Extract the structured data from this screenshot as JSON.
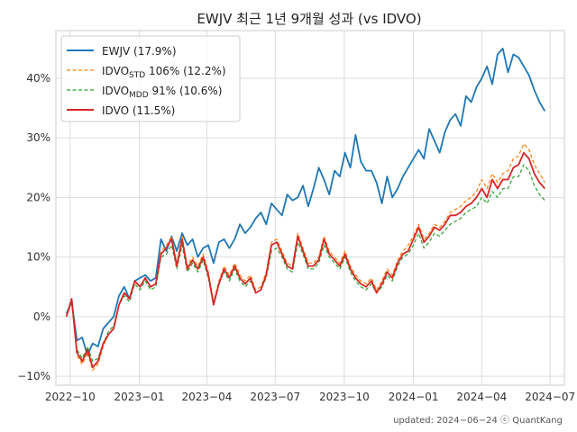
{
  "chart_data": {
    "type": "line",
    "title": "EWJV 최근 1년 9개월 성과 (vs IDVO)",
    "xlabel": "",
    "ylabel": "",
    "xlim": [
      "2022-09-12",
      "2024-07-20"
    ],
    "ylim": [
      -11.5,
      48
    ],
    "y_ticks": [
      -10,
      0,
      10,
      20,
      30,
      40
    ],
    "y_tick_labels": [
      "−10%",
      "0%",
      "10%",
      "20%",
      "30%",
      "40%"
    ],
    "x_ticks": [
      "2022-10-01",
      "2023-01-01",
      "2023-04-01",
      "2023-07-01",
      "2023-10-01",
      "2024-01-01",
      "2024-04-01",
      "2024-07-01"
    ],
    "x_tick_labels": [
      "2022−10",
      "2023−01",
      "2023−04",
      "2023−07",
      "2023−10",
      "2024−01",
      "2024−04",
      "2024−07"
    ],
    "grid": true,
    "legend_position": "top-left",
    "series": [
      {
        "name": "EWJV (17.9%)",
        "legend_main": "EWJV (17.9%)",
        "legend_sub": "",
        "legend_rest": "",
        "color": "#1f77b4",
        "style": "solid",
        "x": [
          "2022-09-26",
          "2022-10-03",
          "2022-10-10",
          "2022-10-17",
          "2022-10-24",
          "2022-10-31",
          "2022-11-07",
          "2022-11-14",
          "2022-11-21",
          "2022-11-28",
          "2022-12-05",
          "2022-12-12",
          "2022-12-19",
          "2022-12-26",
          "2023-01-02",
          "2023-01-09",
          "2023-01-16",
          "2023-01-23",
          "2023-01-30",
          "2023-02-06",
          "2023-02-13",
          "2023-02-20",
          "2023-02-27",
          "2023-03-06",
          "2023-03-13",
          "2023-03-20",
          "2023-03-27",
          "2023-04-03",
          "2023-04-10",
          "2023-04-17",
          "2023-04-24",
          "2023-05-01",
          "2023-05-08",
          "2023-05-15",
          "2023-05-22",
          "2023-05-29",
          "2023-06-05",
          "2023-06-12",
          "2023-06-19",
          "2023-06-26",
          "2023-07-03",
          "2023-07-10",
          "2023-07-17",
          "2023-07-24",
          "2023-07-31",
          "2023-08-07",
          "2023-08-14",
          "2023-08-21",
          "2023-08-28",
          "2023-09-04",
          "2023-09-11",
          "2023-09-18",
          "2023-09-25",
          "2023-10-02",
          "2023-10-09",
          "2023-10-16",
          "2023-10-23",
          "2023-10-30",
          "2023-11-06",
          "2023-11-13",
          "2023-11-20",
          "2023-11-27",
          "2023-12-04",
          "2023-12-11",
          "2023-12-18",
          "2023-12-25",
          "2024-01-01",
          "2024-01-08",
          "2024-01-15",
          "2024-01-22",
          "2024-01-29",
          "2024-02-05",
          "2024-02-12",
          "2024-02-19",
          "2024-02-26",
          "2024-03-04",
          "2024-03-11",
          "2024-03-18",
          "2024-03-25",
          "2024-04-01",
          "2024-04-08",
          "2024-04-15",
          "2024-04-22",
          "2024-04-29",
          "2024-05-06",
          "2024-05-13",
          "2024-05-20",
          "2024-05-27",
          "2024-06-03",
          "2024-06-10",
          "2024-06-17",
          "2024-06-24"
        ],
        "y": [
          0.5,
          2.5,
          -4.0,
          -3.5,
          -6.5,
          -4.5,
          -5.0,
          -2.0,
          -1.0,
          0.0,
          3.5,
          5.0,
          3.0,
          6.0,
          6.5,
          7.0,
          6.0,
          6.5,
          13.0,
          11.0,
          13.5,
          11.0,
          14.0,
          12.0,
          13.0,
          10.0,
          11.5,
          12.0,
          9.0,
          12.5,
          13.0,
          11.5,
          13.0,
          15.5,
          14.0,
          15.0,
          16.5,
          17.5,
          15.5,
          19.0,
          18.0,
          17.0,
          20.5,
          19.5,
          20.0,
          22.0,
          18.5,
          21.5,
          25.0,
          23.0,
          20.5,
          24.5,
          23.5,
          27.5,
          25.0,
          30.5,
          26.0,
          24.5,
          24.5,
          22.5,
          19.0,
          23.5,
          20.0,
          21.5,
          23.5,
          25.0,
          26.5,
          28.0,
          26.5,
          31.5,
          29.5,
          27.5,
          31.0,
          33.0,
          34.0,
          32.0,
          37.0,
          36.0,
          38.5,
          40.0,
          42.0,
          39.0,
          44.0,
          45.0,
          41.0,
          44.0,
          43.5,
          42.0,
          40.5,
          38.0,
          36.0,
          34.5
        ]
      },
      {
        "name": "IDVO_STD 106% (12.2%)",
        "legend_main": "IDVO",
        "legend_sub": "STD",
        "legend_rest": " 106% (12.2%)",
        "color": "#ff7f0e",
        "style": "dashed",
        "x": [
          "2022-09-26",
          "2022-10-03",
          "2022-10-10",
          "2022-10-17",
          "2022-10-24",
          "2022-10-31",
          "2022-11-07",
          "2022-11-14",
          "2022-11-21",
          "2022-11-28",
          "2022-12-05",
          "2022-12-12",
          "2022-12-19",
          "2022-12-26",
          "2023-01-02",
          "2023-01-09",
          "2023-01-16",
          "2023-01-23",
          "2023-01-30",
          "2023-02-06",
          "2023-02-13",
          "2023-02-20",
          "2023-02-27",
          "2023-03-06",
          "2023-03-13",
          "2023-03-20",
          "2023-03-27",
          "2023-04-03",
          "2023-04-10",
          "2023-04-17",
          "2023-04-24",
          "2023-05-01",
          "2023-05-08",
          "2023-05-15",
          "2023-05-22",
          "2023-05-29",
          "2023-06-05",
          "2023-06-12",
          "2023-06-19",
          "2023-06-26",
          "2023-07-03",
          "2023-07-10",
          "2023-07-17",
          "2023-07-24",
          "2023-07-31",
          "2023-08-07",
          "2023-08-14",
          "2023-08-21",
          "2023-08-28",
          "2023-09-04",
          "2023-09-11",
          "2023-09-18",
          "2023-09-25",
          "2023-10-02",
          "2023-10-09",
          "2023-10-16",
          "2023-10-23",
          "2023-10-30",
          "2023-11-06",
          "2023-11-13",
          "2023-11-20",
          "2023-11-27",
          "2023-12-04",
          "2023-12-11",
          "2023-12-18",
          "2023-12-25",
          "2024-01-01",
          "2024-01-08",
          "2024-01-15",
          "2024-01-22",
          "2024-01-29",
          "2024-02-05",
          "2024-02-12",
          "2024-02-19",
          "2024-02-26",
          "2024-03-04",
          "2024-03-11",
          "2024-03-18",
          "2024-03-25",
          "2024-04-01",
          "2024-04-08",
          "2024-04-15",
          "2024-04-22",
          "2024-04-29",
          "2024-05-06",
          "2024-05-13",
          "2024-05-20",
          "2024-05-27",
          "2024-06-03",
          "2024-06-10",
          "2024-06-17",
          "2024-06-24"
        ],
        "y": [
          0.0,
          3.0,
          -6.5,
          -8.0,
          -6.0,
          -9.0,
          -8.0,
          -5.0,
          -3.0,
          -2.0,
          2.0,
          4.0,
          3.0,
          6.0,
          5.0,
          6.5,
          5.0,
          5.5,
          11.0,
          12.0,
          13.5,
          9.0,
          13.5,
          8.5,
          10.0,
          8.5,
          10.5,
          7.5,
          2.5,
          6.0,
          8.5,
          7.0,
          9.0,
          7.0,
          6.0,
          7.0,
          4.5,
          5.0,
          7.5,
          12.5,
          13.0,
          11.0,
          9.0,
          8.5,
          14.0,
          11.5,
          9.0,
          9.0,
          10.0,
          13.5,
          11.0,
          10.0,
          9.0,
          11.0,
          8.5,
          7.0,
          6.0,
          5.5,
          6.5,
          4.5,
          6.0,
          8.0,
          7.0,
          9.5,
          11.0,
          12.0,
          13.5,
          15.5,
          13.0,
          14.0,
          15.5,
          15.0,
          16.0,
          17.5,
          18.0,
          18.5,
          19.5,
          20.0,
          21.0,
          23.0,
          21.5,
          24.0,
          22.5,
          24.0,
          24.5,
          26.5,
          27.0,
          29.0,
          28.0,
          25.5,
          24.0,
          22.5
        ]
      },
      {
        "name": "IDVO_MDD 91% (10.6%)",
        "legend_main": "IDVO",
        "legend_sub": "MDD",
        "legend_rest": " 91% (10.6%)",
        "color": "#2ca02c",
        "style": "dashed",
        "x": [
          "2022-09-26",
          "2022-10-03",
          "2022-10-10",
          "2022-10-17",
          "2022-10-24",
          "2022-10-31",
          "2022-11-07",
          "2022-11-14",
          "2022-11-21",
          "2022-11-28",
          "2022-12-05",
          "2022-12-12",
          "2022-12-19",
          "2022-12-26",
          "2023-01-02",
          "2023-01-09",
          "2023-01-16",
          "2023-01-23",
          "2023-01-30",
          "2023-02-06",
          "2023-02-13",
          "2023-02-20",
          "2023-02-27",
          "2023-03-06",
          "2023-03-13",
          "2023-03-20",
          "2023-03-27",
          "2023-04-03",
          "2023-04-10",
          "2023-04-17",
          "2023-04-24",
          "2023-05-01",
          "2023-05-08",
          "2023-05-15",
          "2023-05-22",
          "2023-05-29",
          "2023-06-05",
          "2023-06-12",
          "2023-06-19",
          "2023-06-26",
          "2023-07-03",
          "2023-07-10",
          "2023-07-17",
          "2023-07-24",
          "2023-07-31",
          "2023-08-07",
          "2023-08-14",
          "2023-08-21",
          "2023-08-28",
          "2023-09-04",
          "2023-09-11",
          "2023-09-18",
          "2023-09-25",
          "2023-10-02",
          "2023-10-09",
          "2023-10-16",
          "2023-10-23",
          "2023-10-30",
          "2023-11-06",
          "2023-11-13",
          "2023-11-20",
          "2023-11-27",
          "2023-12-04",
          "2023-12-11",
          "2023-12-18",
          "2023-12-25",
          "2024-01-01",
          "2024-01-08",
          "2024-01-15",
          "2024-01-22",
          "2024-01-29",
          "2024-02-05",
          "2024-02-12",
          "2024-02-19",
          "2024-02-26",
          "2024-03-04",
          "2024-03-11",
          "2024-03-18",
          "2024-03-25",
          "2024-04-01",
          "2024-04-08",
          "2024-04-15",
          "2024-04-22",
          "2024-04-29",
          "2024-05-06",
          "2024-05-13",
          "2024-05-20",
          "2024-05-27",
          "2024-06-03",
          "2024-06-10",
          "2024-06-17",
          "2024-06-24"
        ],
        "y": [
          0.0,
          2.5,
          -5.5,
          -7.0,
          -5.0,
          -7.5,
          -7.0,
          -4.5,
          -2.5,
          -1.5,
          2.0,
          3.5,
          2.5,
          5.5,
          4.5,
          6.0,
          4.5,
          5.0,
          10.0,
          10.5,
          12.0,
          8.0,
          12.0,
          7.5,
          9.0,
          7.5,
          9.5,
          6.5,
          2.0,
          5.5,
          7.5,
          6.0,
          8.0,
          6.0,
          5.0,
          6.0,
          4.0,
          4.5,
          6.5,
          11.0,
          11.5,
          10.0,
          8.0,
          7.5,
          12.5,
          10.5,
          8.0,
          8.0,
          9.0,
          12.0,
          10.0,
          9.0,
          8.0,
          10.0,
          7.5,
          6.0,
          5.0,
          4.5,
          5.5,
          4.0,
          5.0,
          7.0,
          6.0,
          8.5,
          10.0,
          10.5,
          12.0,
          14.0,
          11.5,
          12.5,
          14.0,
          13.5,
          14.5,
          15.5,
          16.0,
          16.5,
          17.5,
          18.0,
          18.5,
          20.0,
          19.0,
          21.0,
          20.0,
          21.5,
          21.5,
          23.5,
          23.5,
          25.5,
          24.5,
          22.0,
          20.5,
          19.5
        ]
      },
      {
        "name": "IDVO (11.5%)",
        "legend_main": "IDVO (11.5%)",
        "legend_sub": "",
        "legend_rest": "",
        "color": "#d62728",
        "style": "solid",
        "x": [
          "2022-09-26",
          "2022-10-03",
          "2022-10-10",
          "2022-10-17",
          "2022-10-24",
          "2022-10-31",
          "2022-11-07",
          "2022-11-14",
          "2022-11-21",
          "2022-11-28",
          "2022-12-05",
          "2022-12-12",
          "2022-12-19",
          "2022-12-26",
          "2023-01-02",
          "2023-01-09",
          "2023-01-16",
          "2023-01-23",
          "2023-01-30",
          "2023-02-06",
          "2023-02-13",
          "2023-02-20",
          "2023-02-27",
          "2023-03-06",
          "2023-03-13",
          "2023-03-20",
          "2023-03-27",
          "2023-04-03",
          "2023-04-10",
          "2023-04-17",
          "2023-04-24",
          "2023-05-01",
          "2023-05-08",
          "2023-05-15",
          "2023-05-22",
          "2023-05-29",
          "2023-06-05",
          "2023-06-12",
          "2023-06-19",
          "2023-06-26",
          "2023-07-03",
          "2023-07-10",
          "2023-07-17",
          "2023-07-24",
          "2023-07-31",
          "2023-08-07",
          "2023-08-14",
          "2023-08-21",
          "2023-08-28",
          "2023-09-04",
          "2023-09-11",
          "2023-09-18",
          "2023-09-25",
          "2023-10-02",
          "2023-10-09",
          "2023-10-16",
          "2023-10-23",
          "2023-10-30",
          "2023-11-06",
          "2023-11-13",
          "2023-11-20",
          "2023-11-27",
          "2023-12-04",
          "2023-12-11",
          "2023-12-18",
          "2023-12-25",
          "2024-01-01",
          "2024-01-08",
          "2024-01-15",
          "2024-01-22",
          "2024-01-29",
          "2024-02-05",
          "2024-02-12",
          "2024-02-19",
          "2024-02-26",
          "2024-03-04",
          "2024-03-11",
          "2024-03-18",
          "2024-03-25",
          "2024-04-01",
          "2024-04-08",
          "2024-04-15",
          "2024-04-22",
          "2024-04-29",
          "2024-05-06",
          "2024-05-13",
          "2024-05-20",
          "2024-05-27",
          "2024-06-03",
          "2024-06-10",
          "2024-06-17",
          "2024-06-24"
        ],
        "y": [
          0.0,
          3.0,
          -6.0,
          -7.5,
          -5.5,
          -8.5,
          -7.5,
          -4.5,
          -3.0,
          -2.0,
          2.0,
          4.0,
          3.0,
          6.0,
          5.0,
          6.5,
          5.0,
          5.5,
          10.5,
          11.5,
          13.0,
          8.5,
          13.0,
          8.0,
          9.5,
          8.0,
          10.0,
          7.0,
          2.0,
          5.5,
          8.0,
          6.5,
          8.5,
          6.5,
          5.5,
          6.5,
          4.0,
          4.5,
          7.0,
          12.0,
          12.5,
          10.5,
          8.5,
          8.0,
          13.5,
          11.0,
          8.5,
          8.5,
          9.5,
          13.0,
          10.5,
          9.5,
          8.5,
          10.5,
          8.0,
          6.5,
          5.5,
          5.0,
          6.0,
          4.0,
          5.5,
          7.5,
          6.5,
          9.0,
          10.5,
          11.0,
          13.0,
          15.0,
          12.5,
          13.5,
          15.0,
          14.5,
          15.5,
          17.0,
          17.0,
          17.5,
          18.5,
          19.0,
          20.0,
          21.5,
          20.0,
          23.0,
          21.5,
          23.0,
          23.0,
          25.0,
          25.5,
          27.5,
          26.5,
          24.0,
          22.5,
          21.5
        ]
      }
    ]
  },
  "footer": {
    "updated": "updated: 2024−06−24 ⓒ QuantKang"
  }
}
